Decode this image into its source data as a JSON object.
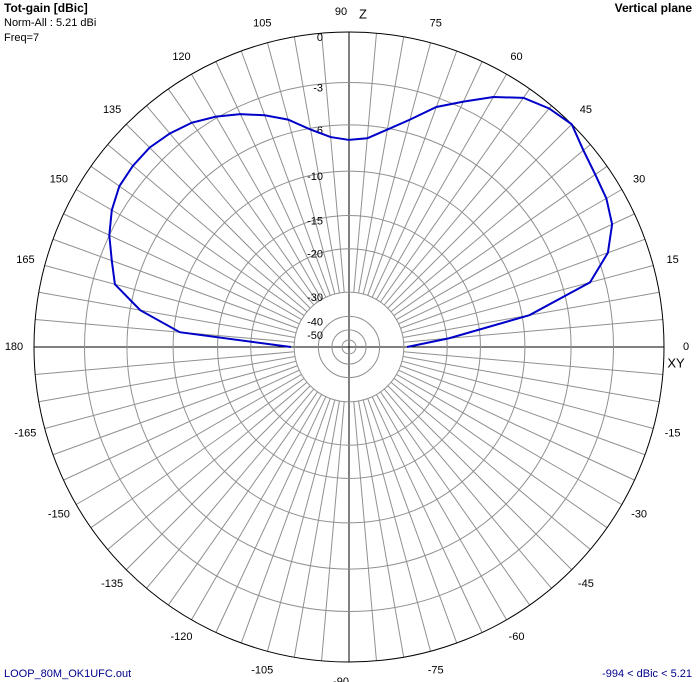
{
  "chart_data": {
    "type": "polar",
    "title": "Tot-gain [dBic]",
    "subtitle": "Vertical plane",
    "annotations": [
      "Norm-All : 5.21 dBi",
      "Freq=7"
    ],
    "axis_labels": {
      "vertical": "Z",
      "horizontal": "XY"
    },
    "footer_left": "LOOP_80M_OK1UFC.out",
    "footer_right": "-994 < dBic < 5.21",
    "x": [
      0,
      5,
      10,
      15,
      20,
      25,
      30,
      35,
      40,
      45,
      50,
      55,
      60,
      65,
      70,
      75,
      80,
      85,
      90,
      95,
      100,
      105,
      110,
      115,
      120,
      125,
      130,
      135,
      140,
      145,
      150,
      155,
      160,
      165,
      170,
      175,
      180
    ],
    "values": [
      -29,
      -19.6,
      -9.3,
      -4.0,
      -2.3,
      -1.4,
      -1.0,
      -0.8,
      -0.5,
      0,
      -0.2,
      -0.6,
      -1.5,
      -2.6,
      -3.6,
      -5.0,
      -6.1,
      -7.0,
      -7.2,
      -6.9,
      -6.1,
      -5.0,
      -4.2,
      -3.5,
      -2.9,
      -2.4,
      -2.1,
      -1.9,
      -1.9,
      -2.0,
      -2.4,
      -3.0,
      -3.8,
      -4.5,
      -6.8,
      -10.6,
      -29
    ],
    "color": "#0000c8",
    "rticks": [
      0,
      -3,
      -6,
      -10,
      -15,
      -20,
      -30,
      -40,
      -50
    ],
    "angle_ticks": [
      0,
      15,
      30,
      45,
      60,
      75,
      90,
      105,
      120,
      135,
      150,
      165,
      180,
      -165,
      -150,
      -135,
      -120,
      -105,
      -90,
      -75,
      -60,
      -45,
      -30,
      -15
    ]
  }
}
